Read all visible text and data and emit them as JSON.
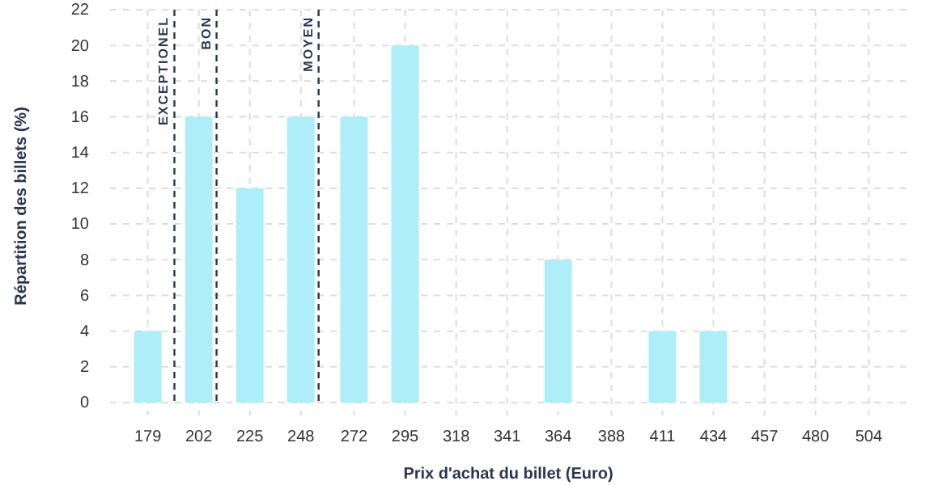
{
  "chart_data": {
    "type": "bar",
    "xlabel": "Prix d'achat du billet (Euro)",
    "ylabel": "Répartition des billets (%)",
    "x": [
      179,
      202,
      225,
      248,
      272,
      295,
      318,
      341,
      364,
      388,
      411,
      434,
      457,
      480,
      504
    ],
    "values": [
      4,
      16,
      12,
      16,
      16,
      20,
      0,
      0,
      8,
      0,
      4,
      4,
      0,
      0,
      0
    ],
    "color": "#aeeef8",
    "xlim": [
      162,
      521
    ],
    "xticks": [
      179,
      202,
      225,
      248,
      272,
      295,
      318,
      341,
      364,
      388,
      411,
      434,
      457,
      480,
      504
    ],
    "ylim": [
      0,
      22
    ],
    "yticks": [
      0,
      2,
      4,
      6,
      8,
      10,
      12,
      14,
      16,
      18,
      20,
      22
    ],
    "grid": true,
    "ref_lines": [
      {
        "axis": "x",
        "value": 191,
        "label": "EXCEPTIONEL",
        "color": "#2a3550",
        "line_style": "dashed"
      },
      {
        "axis": "x",
        "value": 210,
        "label": "BON",
        "color": "#2a3550",
        "line_style": "dashed"
      },
      {
        "axis": "x",
        "value": 256,
        "label": "MOYEN",
        "color": "#2a3550",
        "line_style": "dashed"
      }
    ]
  }
}
